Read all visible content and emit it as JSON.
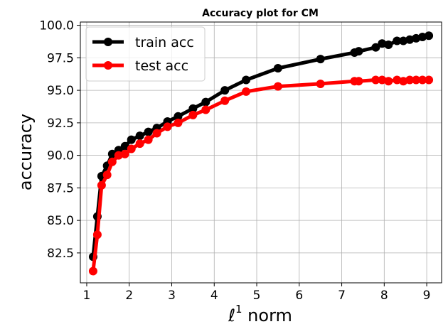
{
  "chart_data": {
    "type": "line",
    "title": "Accuracy plot for CM",
    "xlabel_symbol": "ℓ",
    "xlabel_sup": "1",
    "xlabel_rest": " norm",
    "ylabel": "accuracy",
    "xlim": [
      0.85,
      9.35
    ],
    "ylim": [
      80.2,
      100.25
    ],
    "grid": true,
    "legend_position": "top-left",
    "x_ticks": [
      1,
      2,
      3,
      4,
      5,
      6,
      7,
      8,
      9
    ],
    "x_tick_labels": [
      "1",
      "2",
      "3",
      "4",
      "5",
      "6",
      "7",
      "8",
      "9"
    ],
    "y_ticks": [
      82.5,
      85.0,
      87.5,
      90.0,
      92.5,
      95.0,
      97.5,
      100.0
    ],
    "y_tick_labels": [
      "82.5",
      "85.0",
      "87.5",
      "90.0",
      "92.5",
      "95.0",
      "97.5",
      "100.0"
    ],
    "series": [
      {
        "name": "train acc",
        "color": "#000000",
        "points": [
          [
            1.15,
            82.2
          ],
          [
            1.25,
            85.3
          ],
          [
            1.35,
            88.4
          ],
          [
            1.48,
            89.2
          ],
          [
            1.6,
            90.1
          ],
          [
            1.75,
            90.4
          ],
          [
            1.9,
            90.7
          ],
          [
            2.05,
            91.2
          ],
          [
            2.25,
            91.5
          ],
          [
            2.45,
            91.8
          ],
          [
            2.65,
            92.1
          ],
          [
            2.9,
            92.6
          ],
          [
            3.15,
            93.0
          ],
          [
            3.5,
            93.6
          ],
          [
            3.8,
            94.1
          ],
          [
            4.25,
            95.0
          ],
          [
            4.75,
            95.8
          ],
          [
            5.5,
            96.7
          ],
          [
            6.5,
            97.4
          ],
          [
            7.3,
            97.9
          ],
          [
            7.4,
            98.0
          ],
          [
            7.8,
            98.3
          ],
          [
            7.95,
            98.6
          ],
          [
            8.1,
            98.5
          ],
          [
            8.3,
            98.8
          ],
          [
            8.45,
            98.8
          ],
          [
            8.6,
            98.9
          ],
          [
            8.75,
            99.0
          ],
          [
            8.9,
            99.1
          ],
          [
            9.05,
            99.2
          ]
        ]
      },
      {
        "name": "test acc",
        "color": "#ff0000",
        "points": [
          [
            1.15,
            81.1
          ],
          [
            1.25,
            83.9
          ],
          [
            1.35,
            87.7
          ],
          [
            1.48,
            88.5
          ],
          [
            1.6,
            89.5
          ],
          [
            1.75,
            90.0
          ],
          [
            1.9,
            90.1
          ],
          [
            2.05,
            90.5
          ],
          [
            2.25,
            90.9
          ],
          [
            2.45,
            91.2
          ],
          [
            2.65,
            91.7
          ],
          [
            2.9,
            92.2
          ],
          [
            3.15,
            92.5
          ],
          [
            3.5,
            93.1
          ],
          [
            3.8,
            93.5
          ],
          [
            4.25,
            94.2
          ],
          [
            4.75,
            94.9
          ],
          [
            5.5,
            95.3
          ],
          [
            6.5,
            95.5
          ],
          [
            7.3,
            95.7
          ],
          [
            7.4,
            95.7
          ],
          [
            7.8,
            95.8
          ],
          [
            7.95,
            95.8
          ],
          [
            8.1,
            95.7
          ],
          [
            8.3,
            95.8
          ],
          [
            8.45,
            95.7
          ],
          [
            8.6,
            95.8
          ],
          [
            8.75,
            95.8
          ],
          [
            8.9,
            95.8
          ],
          [
            9.05,
            95.8
          ]
        ]
      }
    ]
  }
}
